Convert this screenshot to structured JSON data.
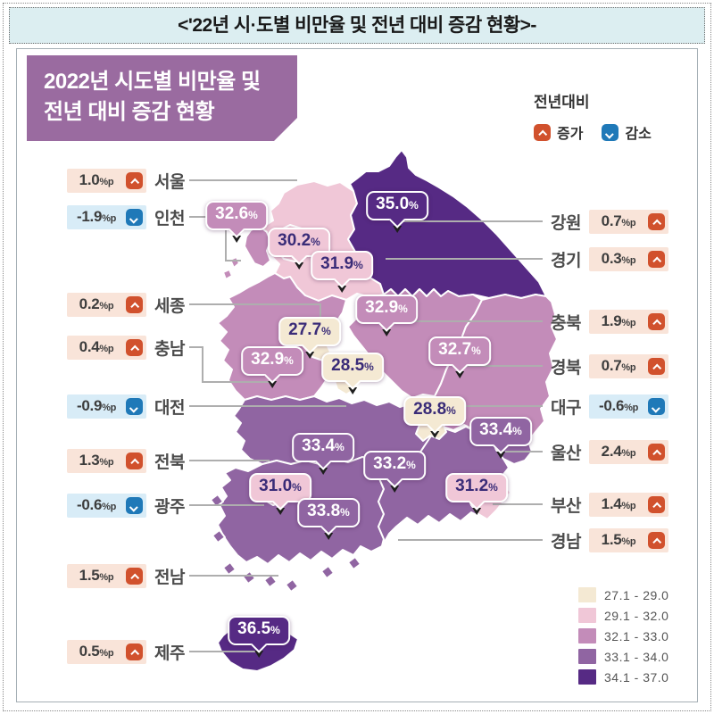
{
  "banner": {
    "title": "<'22년 시·도별 비만율 및 전년 대비 증감 현황>-"
  },
  "header": {
    "line1": "2022년 시도별 비만율 및",
    "line2": "전년 대비 증감 현황"
  },
  "legend": {
    "title": "전년대비",
    "increase_label": "증가",
    "decrease_label": "감소",
    "increase_color": "#d1512d",
    "decrease_color": "#1f79b8"
  },
  "value_box_colors": {
    "increase_bg": "#f9e4d9",
    "decrease_bg": "#d8ecf7"
  },
  "chart_data": {
    "type": "choropleth_map",
    "title": "2022년 시도별 비만율 및 전년 대비 증감 현황",
    "unit": "%",
    "change_unit": "%p",
    "regions": [
      {
        "id": "seoul",
        "name": "서울",
        "obesity_rate": 30.2,
        "change": 1.0,
        "direction": "increase"
      },
      {
        "id": "incheon",
        "name": "인천",
        "obesity_rate": 32.6,
        "change": -1.9,
        "direction": "decrease"
      },
      {
        "id": "sejong",
        "name": "세종",
        "obesity_rate": 27.7,
        "change": 0.2,
        "direction": "increase"
      },
      {
        "id": "chungnam",
        "name": "충남",
        "obesity_rate": 32.9,
        "change": 0.4,
        "direction": "increase"
      },
      {
        "id": "daejeon",
        "name": "대전",
        "obesity_rate": 28.5,
        "change": -0.9,
        "direction": "decrease"
      },
      {
        "id": "jeonbuk",
        "name": "전북",
        "obesity_rate": 33.4,
        "change": 1.3,
        "direction": "increase"
      },
      {
        "id": "gwangju",
        "name": "광주",
        "obesity_rate": 31.0,
        "change": -0.6,
        "direction": "decrease"
      },
      {
        "id": "jeonnam",
        "name": "전남",
        "obesity_rate": 33.8,
        "change": 1.5,
        "direction": "increase"
      },
      {
        "id": "jeju",
        "name": "제주",
        "obesity_rate": 36.5,
        "change": 0.5,
        "direction": "increase"
      },
      {
        "id": "gangwon",
        "name": "강원",
        "obesity_rate": 35.0,
        "change": 0.7,
        "direction": "increase"
      },
      {
        "id": "gyeonggi",
        "name": "경기",
        "obesity_rate": 31.9,
        "change": 0.3,
        "direction": "increase"
      },
      {
        "id": "chungbuk",
        "name": "충북",
        "obesity_rate": 32.9,
        "change": 1.9,
        "direction": "increase"
      },
      {
        "id": "gyeongbuk",
        "name": "경북",
        "obesity_rate": 32.7,
        "change": 0.7,
        "direction": "increase"
      },
      {
        "id": "daegu",
        "name": "대구",
        "obesity_rate": 28.8,
        "change": -0.6,
        "direction": "decrease"
      },
      {
        "id": "ulsan",
        "name": "울산",
        "obesity_rate": 33.4,
        "change": 2.4,
        "direction": "increase"
      },
      {
        "id": "busan",
        "name": "부산",
        "obesity_rate": 31.2,
        "change": 1.4,
        "direction": "increase"
      },
      {
        "id": "gyeongnam",
        "name": "경남",
        "obesity_rate": 33.2,
        "change": 1.5,
        "direction": "increase"
      }
    ],
    "color_scale": [
      {
        "range": "27.1 - 29.0",
        "color": "#f4e9d3"
      },
      {
        "range": "29.1 - 32.0",
        "color": "#f0c7d7"
      },
      {
        "range": "32.1 - 33.0",
        "color": "#c38cb9"
      },
      {
        "range": "33.1 - 34.0",
        "color": "#9065a2"
      },
      {
        "range": "34.1 - 37.0",
        "color": "#562a84"
      }
    ],
    "callout_dark_text_color": "#3a2c78"
  }
}
